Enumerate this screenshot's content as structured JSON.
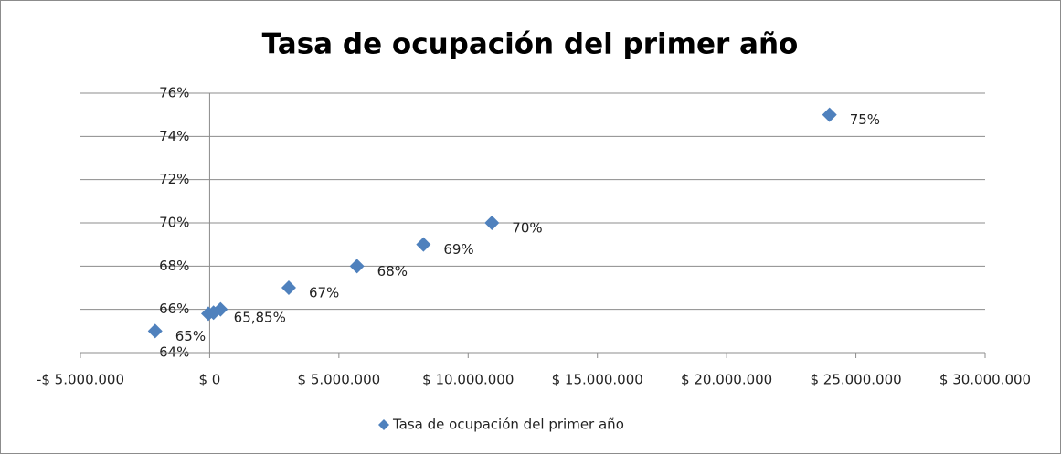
{
  "chart_data": {
    "type": "scatter",
    "title": "Tasa de ocupación del primer año",
    "x": [
      -2110000,
      -50000,
      150000,
      420000,
      3060000,
      5700000,
      8270000,
      10920000,
      23980000
    ],
    "series": [
      {
        "name": "Tasa de ocupación del primer año",
        "color": "#4f81bd",
        "values": [
          65,
          65.8,
          65.85,
          66,
          67,
          68,
          69,
          70,
          75
        ],
        "value_labels": [
          "65%",
          null,
          "65,85%",
          null,
          "67%",
          "68%",
          "69%",
          "70%",
          "75%"
        ]
      }
    ],
    "xlim": [
      -5000000,
      30000000
    ],
    "xticks": [
      {
        "value": -5000000,
        "label": "-$ 5.000.000"
      },
      {
        "value": 0,
        "label": "$ 0"
      },
      {
        "value": 5000000,
        "label": "$ 5.000.000"
      },
      {
        "value": 10000000,
        "label": "$ 10.000.000"
      },
      {
        "value": 15000000,
        "label": "$ 15.000.000"
      },
      {
        "value": 20000000,
        "label": "$ 20.000.000"
      },
      {
        "value": 25000000,
        "label": "$ 25.000.000"
      },
      {
        "value": 30000000,
        "label": "$ 30.000.000"
      }
    ],
    "ylim": [
      64,
      76
    ],
    "yticks": [
      {
        "value": 64,
        "label": "64%"
      },
      {
        "value": 66,
        "label": "66%"
      },
      {
        "value": 68,
        "label": "68%"
      },
      {
        "value": 70,
        "label": "70%"
      },
      {
        "value": 72,
        "label": "72%"
      },
      {
        "value": 74,
        "label": "74%"
      },
      {
        "value": 76,
        "label": "76%"
      }
    ],
    "grid": true,
    "legend": "bottom"
  }
}
